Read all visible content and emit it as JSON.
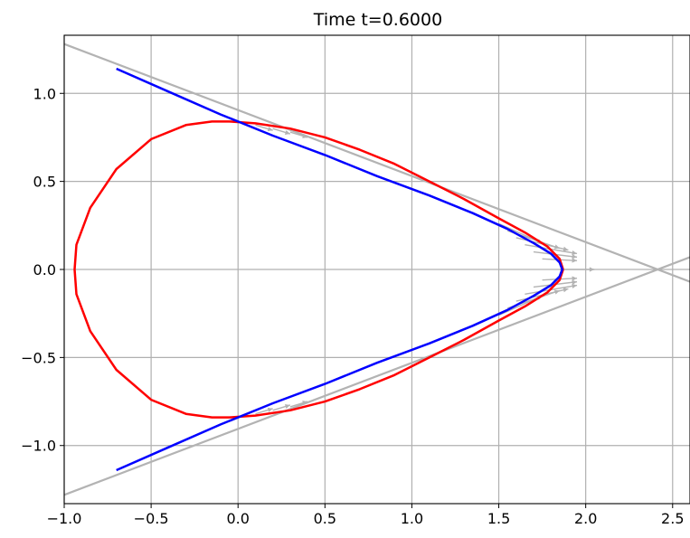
{
  "chart_data": {
    "type": "line",
    "title": "Time t=0.6000",
    "xlabel": "",
    "ylabel": "",
    "xlim": [
      -1.0,
      2.6
    ],
    "ylim": [
      -1.33,
      1.33
    ],
    "grid": true,
    "xticks": [
      -1.0,
      -0.5,
      0.0,
      0.5,
      1.0,
      1.5,
      2.0,
      2.5
    ],
    "xtick_labels": [
      "−1.0",
      "−0.5",
      "0.0",
      "0.5",
      "1.0",
      "1.5",
      "2.0",
      "2.5"
    ],
    "yticks": [
      -1.0,
      -0.5,
      0.0,
      0.5,
      1.0
    ],
    "ytick_labels": [
      "−1.0",
      "−0.5",
      "0.0",
      "0.5",
      "1.0"
    ],
    "colors": {
      "red_curve": "#ff0000",
      "blue_curve": "#0000ff",
      "guides": "#b3b3b3",
      "grid": "#b0b0b0"
    },
    "series": [
      {
        "style": "red-closed-curve",
        "x": [
          1.87,
          1.85,
          1.78,
          1.65,
          1.5,
          1.3,
          1.1,
          0.9,
          0.7,
          0.5,
          0.3,
          0.1,
          -0.05,
          -0.15,
          -0.3,
          -0.5,
          -0.7,
          -0.85,
          -0.93,
          -0.94,
          -0.93,
          -0.85,
          -0.7,
          -0.5,
          -0.3,
          -0.15,
          -0.05,
          0.1,
          0.3,
          0.5,
          0.7,
          0.9,
          1.1,
          1.3,
          1.5,
          1.65,
          1.78,
          1.85,
          1.87
        ],
        "y": [
          0.0,
          0.06,
          0.13,
          0.21,
          0.29,
          0.4,
          0.5,
          0.6,
          0.68,
          0.75,
          0.8,
          0.83,
          0.84,
          0.84,
          0.82,
          0.74,
          0.57,
          0.35,
          0.14,
          0.0,
          -0.14,
          -0.35,
          -0.57,
          -0.74,
          -0.82,
          -0.84,
          -0.84,
          -0.83,
          -0.8,
          -0.75,
          -0.68,
          -0.6,
          -0.5,
          -0.4,
          -0.29,
          -0.21,
          -0.13,
          -0.06,
          0.0
        ]
      },
      {
        "style": "blue-curve",
        "x": [
          -0.7,
          -0.4,
          -0.1,
          0.2,
          0.5,
          0.8,
          1.1,
          1.35,
          1.55,
          1.7,
          1.8,
          1.85,
          1.865,
          1.85,
          1.8,
          1.7,
          1.55,
          1.35,
          1.1,
          0.8,
          0.5,
          0.2,
          -0.1,
          -0.4,
          -0.7
        ],
        "y": [
          1.14,
          1.01,
          0.88,
          0.76,
          0.65,
          0.53,
          0.42,
          0.32,
          0.23,
          0.15,
          0.09,
          0.04,
          0.0,
          -0.04,
          -0.09,
          -0.15,
          -0.23,
          -0.32,
          -0.42,
          -0.53,
          -0.65,
          -0.76,
          -0.88,
          -1.01,
          -1.14
        ]
      },
      {
        "style": "grey-upper-tangent",
        "x": [
          -1.0,
          2.6
        ],
        "y": [
          1.28,
          -0.07
        ]
      },
      {
        "style": "grey-lower-tangent",
        "x": [
          -1.0,
          2.6
        ],
        "y": [
          -1.28,
          0.07
        ]
      }
    ],
    "arrows": {
      "color": "#b3b3b3",
      "items": [
        {
          "x": 1.5,
          "y": 0.26,
          "dx": 0.25,
          "dy": -0.11
        },
        {
          "x": 1.55,
          "y": 0.22,
          "dx": 0.3,
          "dy": -0.1
        },
        {
          "x": 1.6,
          "y": 0.18,
          "dx": 0.3,
          "dy": -0.07
        },
        {
          "x": 1.65,
          "y": 0.14,
          "dx": 0.3,
          "dy": -0.05
        },
        {
          "x": 1.7,
          "y": 0.1,
          "dx": 0.25,
          "dy": -0.03
        },
        {
          "x": 1.75,
          "y": 0.06,
          "dx": 0.2,
          "dy": -0.01
        },
        {
          "x": 1.85,
          "y": 0.0,
          "dx": 0.2,
          "dy": 0.0
        },
        {
          "x": 1.75,
          "y": -0.06,
          "dx": 0.2,
          "dy": 0.01
        },
        {
          "x": 1.7,
          "y": -0.1,
          "dx": 0.25,
          "dy": 0.03
        },
        {
          "x": 1.65,
          "y": -0.14,
          "dx": 0.3,
          "dy": 0.05
        },
        {
          "x": 1.6,
          "y": -0.18,
          "dx": 0.3,
          "dy": 0.07
        },
        {
          "x": 1.55,
          "y": -0.22,
          "dx": 0.3,
          "dy": 0.1
        },
        {
          "x": 1.5,
          "y": -0.26,
          "dx": 0.25,
          "dy": 0.11
        },
        {
          "x": 0.1,
          "y": 0.82,
          "dx": 0.1,
          "dy": -0.03
        },
        {
          "x": 0.2,
          "y": 0.8,
          "dx": 0.1,
          "dy": -0.03
        },
        {
          "x": 0.3,
          "y": 0.78,
          "dx": 0.1,
          "dy": -0.03
        },
        {
          "x": 0.1,
          "y": -0.82,
          "dx": 0.1,
          "dy": 0.03
        },
        {
          "x": 0.2,
          "y": -0.8,
          "dx": 0.1,
          "dy": 0.03
        },
        {
          "x": 0.3,
          "y": -0.78,
          "dx": 0.1,
          "dy": 0.03
        }
      ]
    }
  }
}
